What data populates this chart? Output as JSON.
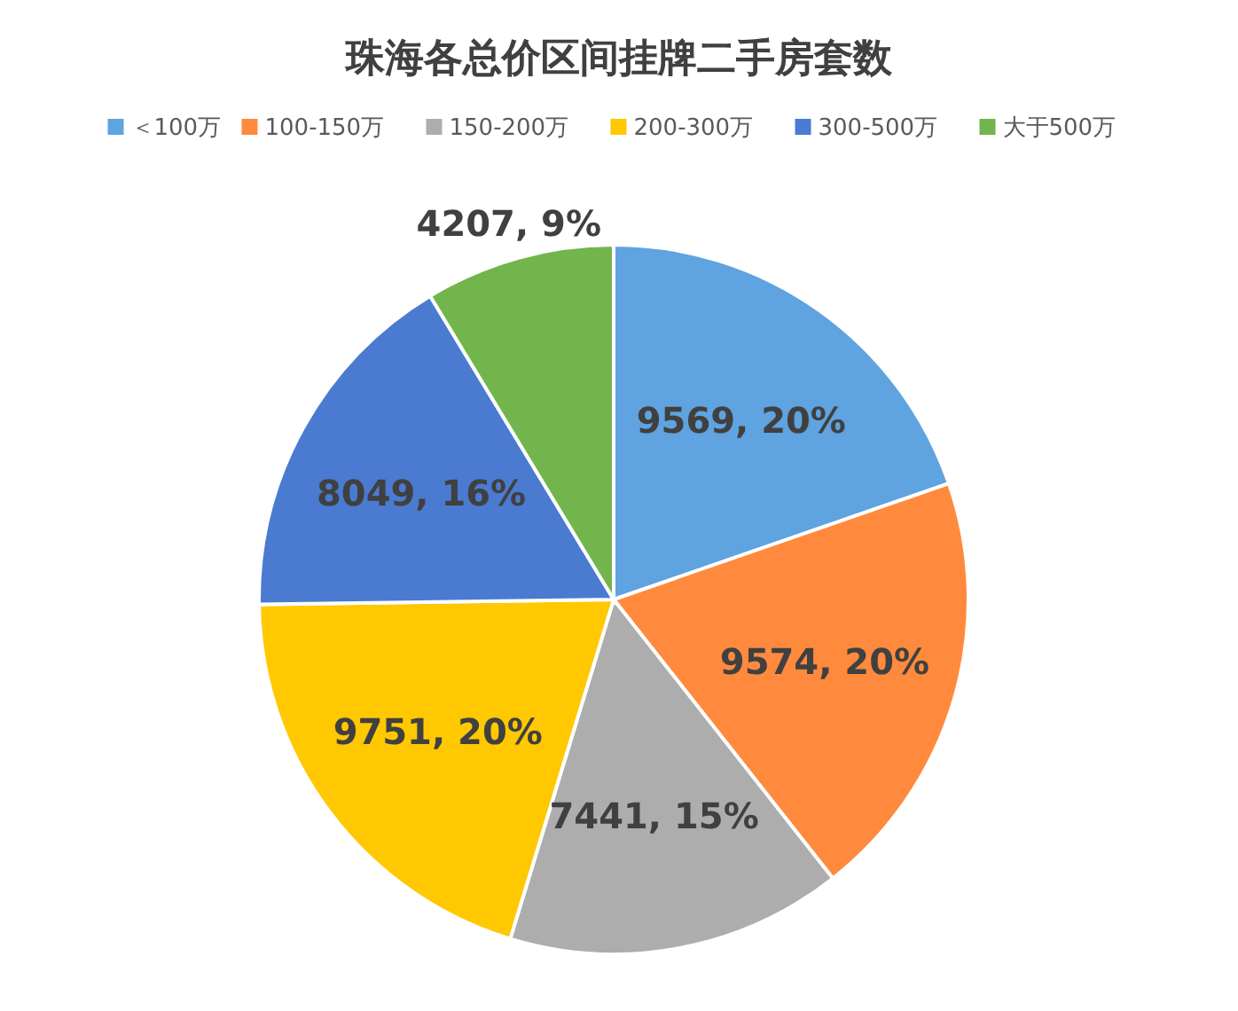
{
  "chart_data": {
    "type": "pie",
    "title": "珠海各总价区间挂牌二手房套数",
    "categories": [
      "＜100万",
      "100-150万",
      "150-200万",
      "200-300万",
      "300-500万",
      "大于500万"
    ],
    "values": [
      9569,
      9574,
      7441,
      9751,
      8049,
      4207
    ],
    "colors": [
      "#5fa3e0",
      "#ff8a3d",
      "#adadad",
      "#ffc800",
      "#4a7bd0",
      "#72b54c"
    ],
    "value_labels": [
      "9569, 20%",
      "9574, 20%",
      "7441, 15%",
      "9751, 20%",
      "8049, 16%",
      "4207, 9%"
    ],
    "legend": "top"
  }
}
